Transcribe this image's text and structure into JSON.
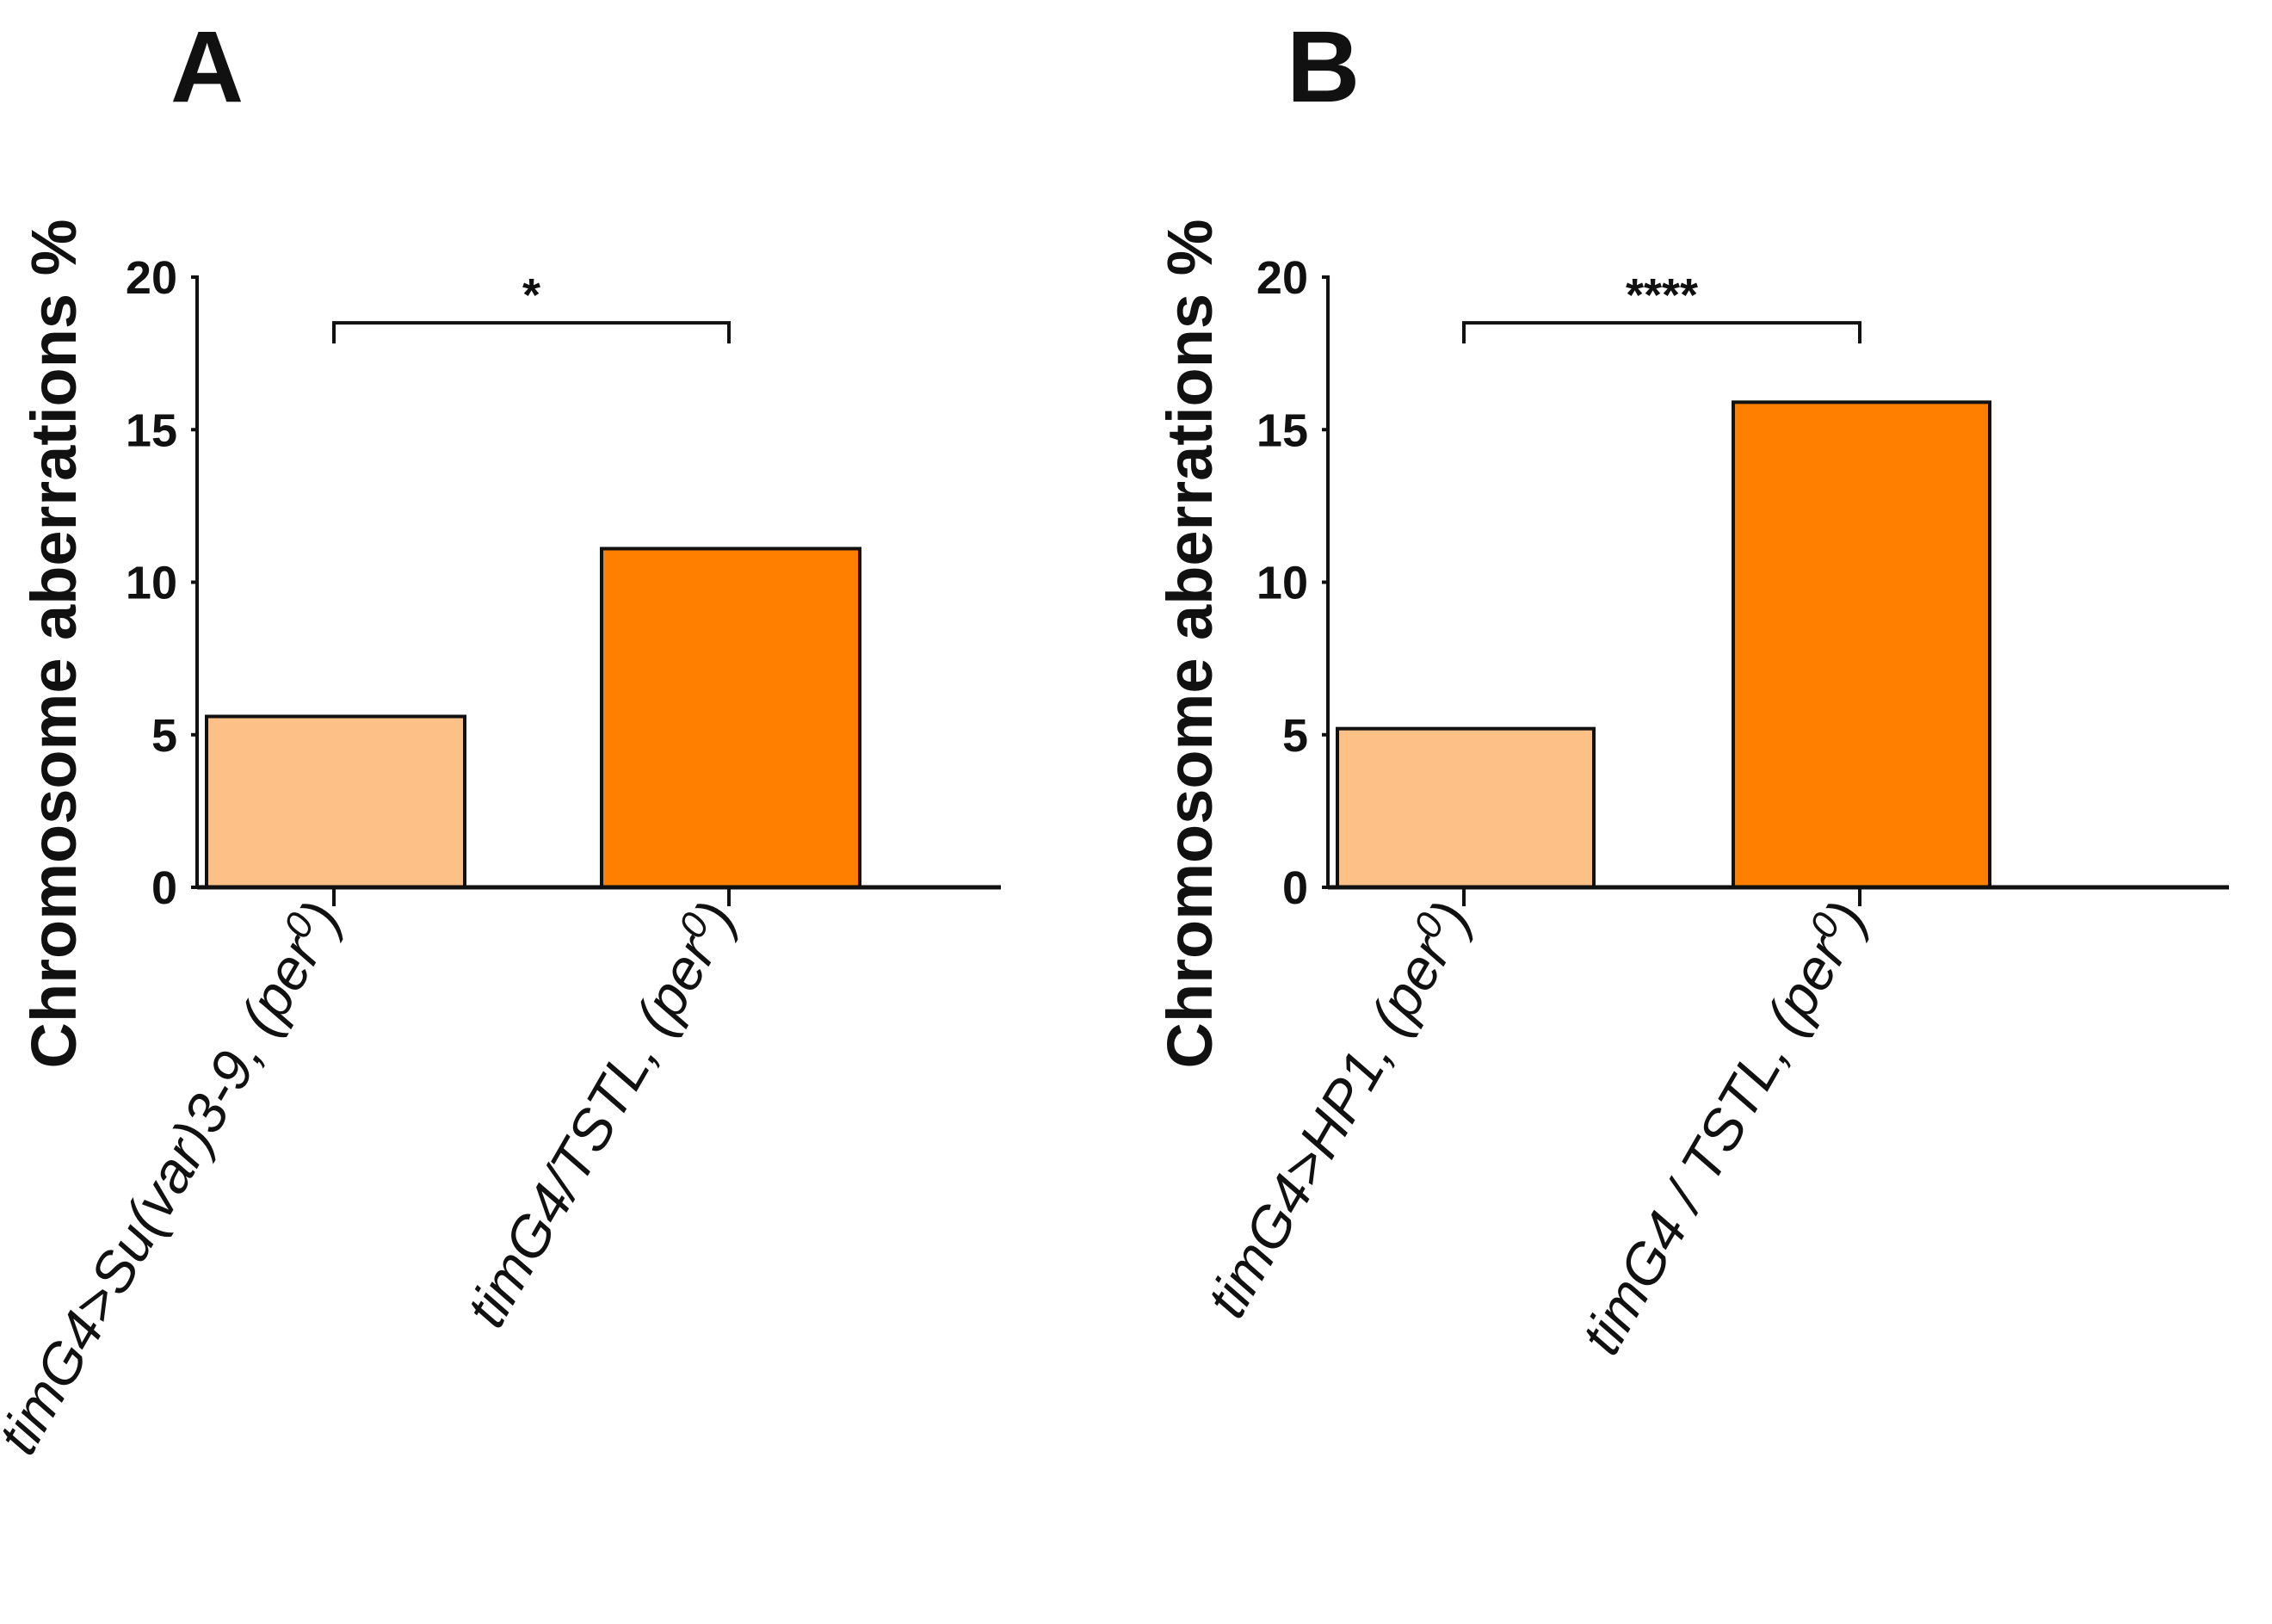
{
  "chart_data": [
    {
      "type": "bar",
      "panel": "A",
      "ylabel": "Chromosome aberrations %",
      "xlabel": "",
      "ylim": [
        0,
        20
      ],
      "yticks": [
        0,
        5,
        10,
        15,
        20
      ],
      "categories": [
        {
          "name": "timG4>Su(var)3-9, (per0)",
          "prefix": "timG4>Su(var)3-9, (per",
          "sup": "0",
          "suffix": ")"
        },
        {
          "name": "timG4/TSTL, (per0)",
          "prefix": "timG4/TSTL, (per",
          "sup": "0",
          "suffix": ")"
        }
      ],
      "values": [
        5.6,
        11.1
      ],
      "colors": [
        "#FDC187",
        "#FF7F00"
      ],
      "significance": {
        "between": [
          0,
          1
        ],
        "label": "*",
        "y": 18.5
      }
    },
    {
      "type": "bar",
      "panel": "B",
      "ylabel": "Chromosome aberrations %",
      "xlabel": "",
      "ylim": [
        0,
        20
      ],
      "yticks": [
        0,
        5,
        10,
        15,
        20
      ],
      "categories": [
        {
          "name": "timG4>HP1, (per0)",
          "prefix": "timG4>HP1, (per",
          "sup": "0",
          "suffix": ")"
        },
        {
          "name": "timG4 / TSTL, (per0)",
          "prefix": "timG4 / TSTL, (per",
          "sup": "0",
          "suffix": ")"
        }
      ],
      "values": [
        5.2,
        15.9
      ],
      "colors": [
        "#FDC187",
        "#FF7F00"
      ],
      "significance": {
        "between": [
          0,
          1
        ],
        "label": "****",
        "y": 18.5
      }
    }
  ]
}
